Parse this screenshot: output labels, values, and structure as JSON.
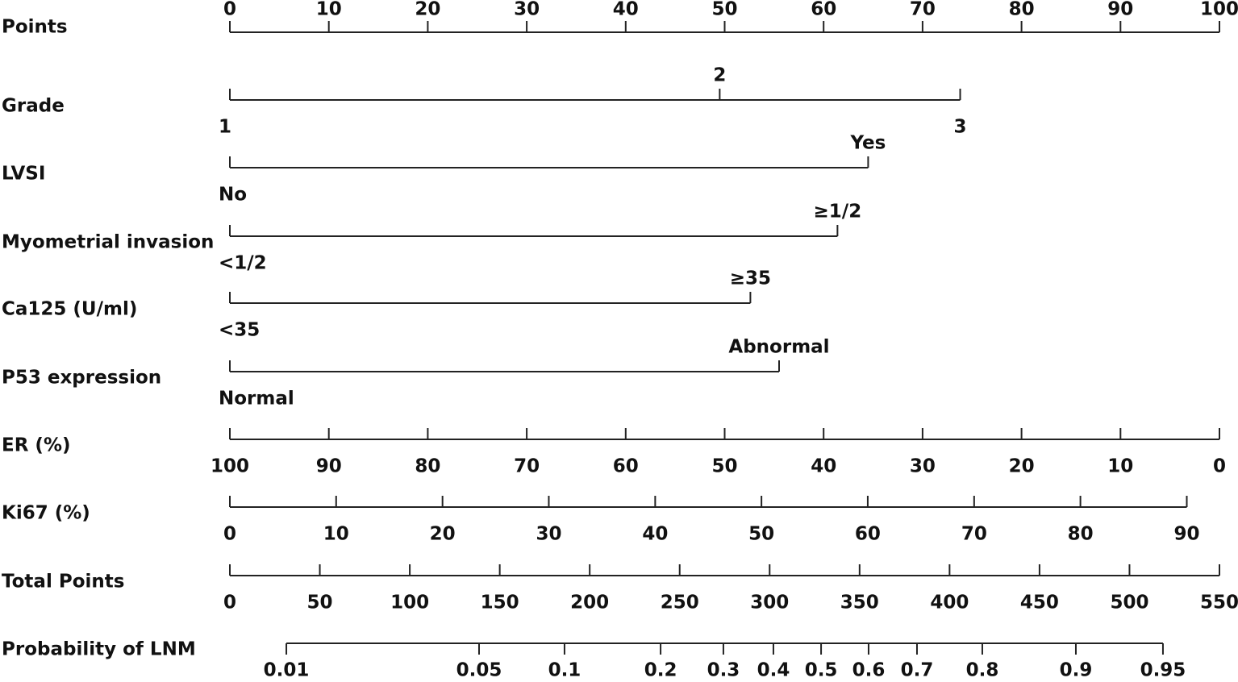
{
  "chart_data": {
    "type": "nomogram",
    "xlim": [
      0,
      100
    ],
    "rows": [
      {
        "label": "Points",
        "ticks": [
          0,
          10,
          20,
          30,
          40,
          50,
          60,
          70,
          80,
          90,
          100
        ]
      },
      {
        "label": "Grade",
        "ticks": [
          {
            "value": 0,
            "label": "1"
          },
          {
            "value": 49.5,
            "label": "2"
          },
          {
            "value": 73.8,
            "label": "3"
          }
        ]
      },
      {
        "label": "LVSI",
        "ticks": [
          {
            "value": 0,
            "label": "No"
          },
          {
            "value": 64.5,
            "label": "Yes"
          }
        ]
      },
      {
        "label": "Myometrial invasion",
        "ticks": [
          {
            "value": 0,
            "label": "<1/2"
          },
          {
            "value": 61.4,
            "label": "≥1/2"
          }
        ]
      },
      {
        "label": "Ca125 (U/ml)",
        "ticks": [
          {
            "value": 0,
            "label": "<35"
          },
          {
            "value": 52.6,
            "label": "≥35"
          }
        ]
      },
      {
        "label": "P53 expression",
        "ticks": [
          {
            "value": 0,
            "label": "Normal"
          },
          {
            "value": 55.5,
            "label": "Abnormal"
          }
        ]
      },
      {
        "label": "ER (%)",
        "ticks": [
          {
            "value": 0,
            "label": "100"
          },
          {
            "value": 10,
            "label": "90"
          },
          {
            "value": 20,
            "label": "80"
          },
          {
            "value": 30,
            "label": "70"
          },
          {
            "value": 40,
            "label": "60"
          },
          {
            "value": 50,
            "label": "50"
          },
          {
            "value": 60,
            "label": "40"
          },
          {
            "value": 70,
            "label": "30"
          },
          {
            "value": 80,
            "label": "20"
          },
          {
            "value": 90,
            "label": "10"
          },
          {
            "value": 100,
            "label": "0"
          }
        ]
      },
      {
        "label": "Ki67 (%)",
        "ticks": [
          {
            "value": 0,
            "label": "0"
          },
          {
            "value": 10.74,
            "label": "10"
          },
          {
            "value": 21.49,
            "label": "20"
          },
          {
            "value": 32.23,
            "label": "30"
          },
          {
            "value": 42.98,
            "label": "40"
          },
          {
            "value": 53.72,
            "label": "50"
          },
          {
            "value": 64.46,
            "label": "60"
          },
          {
            "value": 75.21,
            "label": "70"
          },
          {
            "value": 85.95,
            "label": "80"
          },
          {
            "value": 96.7,
            "label": "90"
          }
        ]
      },
      {
        "label": "Total Points",
        "xlim": [
          0,
          550
        ],
        "ticks": [
          0,
          50,
          100,
          150,
          200,
          250,
          300,
          350,
          400,
          450,
          500,
          550
        ]
      },
      {
        "label": "Probability of LNM",
        "xlim": [
          0,
          550
        ],
        "ticks": [
          {
            "value": 31.4,
            "label": "0.01"
          },
          {
            "value": 138.5,
            "label": "0.05"
          },
          {
            "value": 186.0,
            "label": "0.1"
          },
          {
            "value": 239.4,
            "label": "0.2"
          },
          {
            "value": 274.3,
            "label": "0.3"
          },
          {
            "value": 302.1,
            "label": "0.4"
          },
          {
            "value": 328.6,
            "label": "0.5"
          },
          {
            "value": 355.0,
            "label": "0.6"
          },
          {
            "value": 381.9,
            "label": "0.7"
          },
          {
            "value": 418.2,
            "label": "0.8"
          },
          {
            "value": 470.2,
            "label": "0.9"
          },
          {
            "value": 518.6,
            "label": "0.95"
          }
        ]
      }
    ]
  }
}
